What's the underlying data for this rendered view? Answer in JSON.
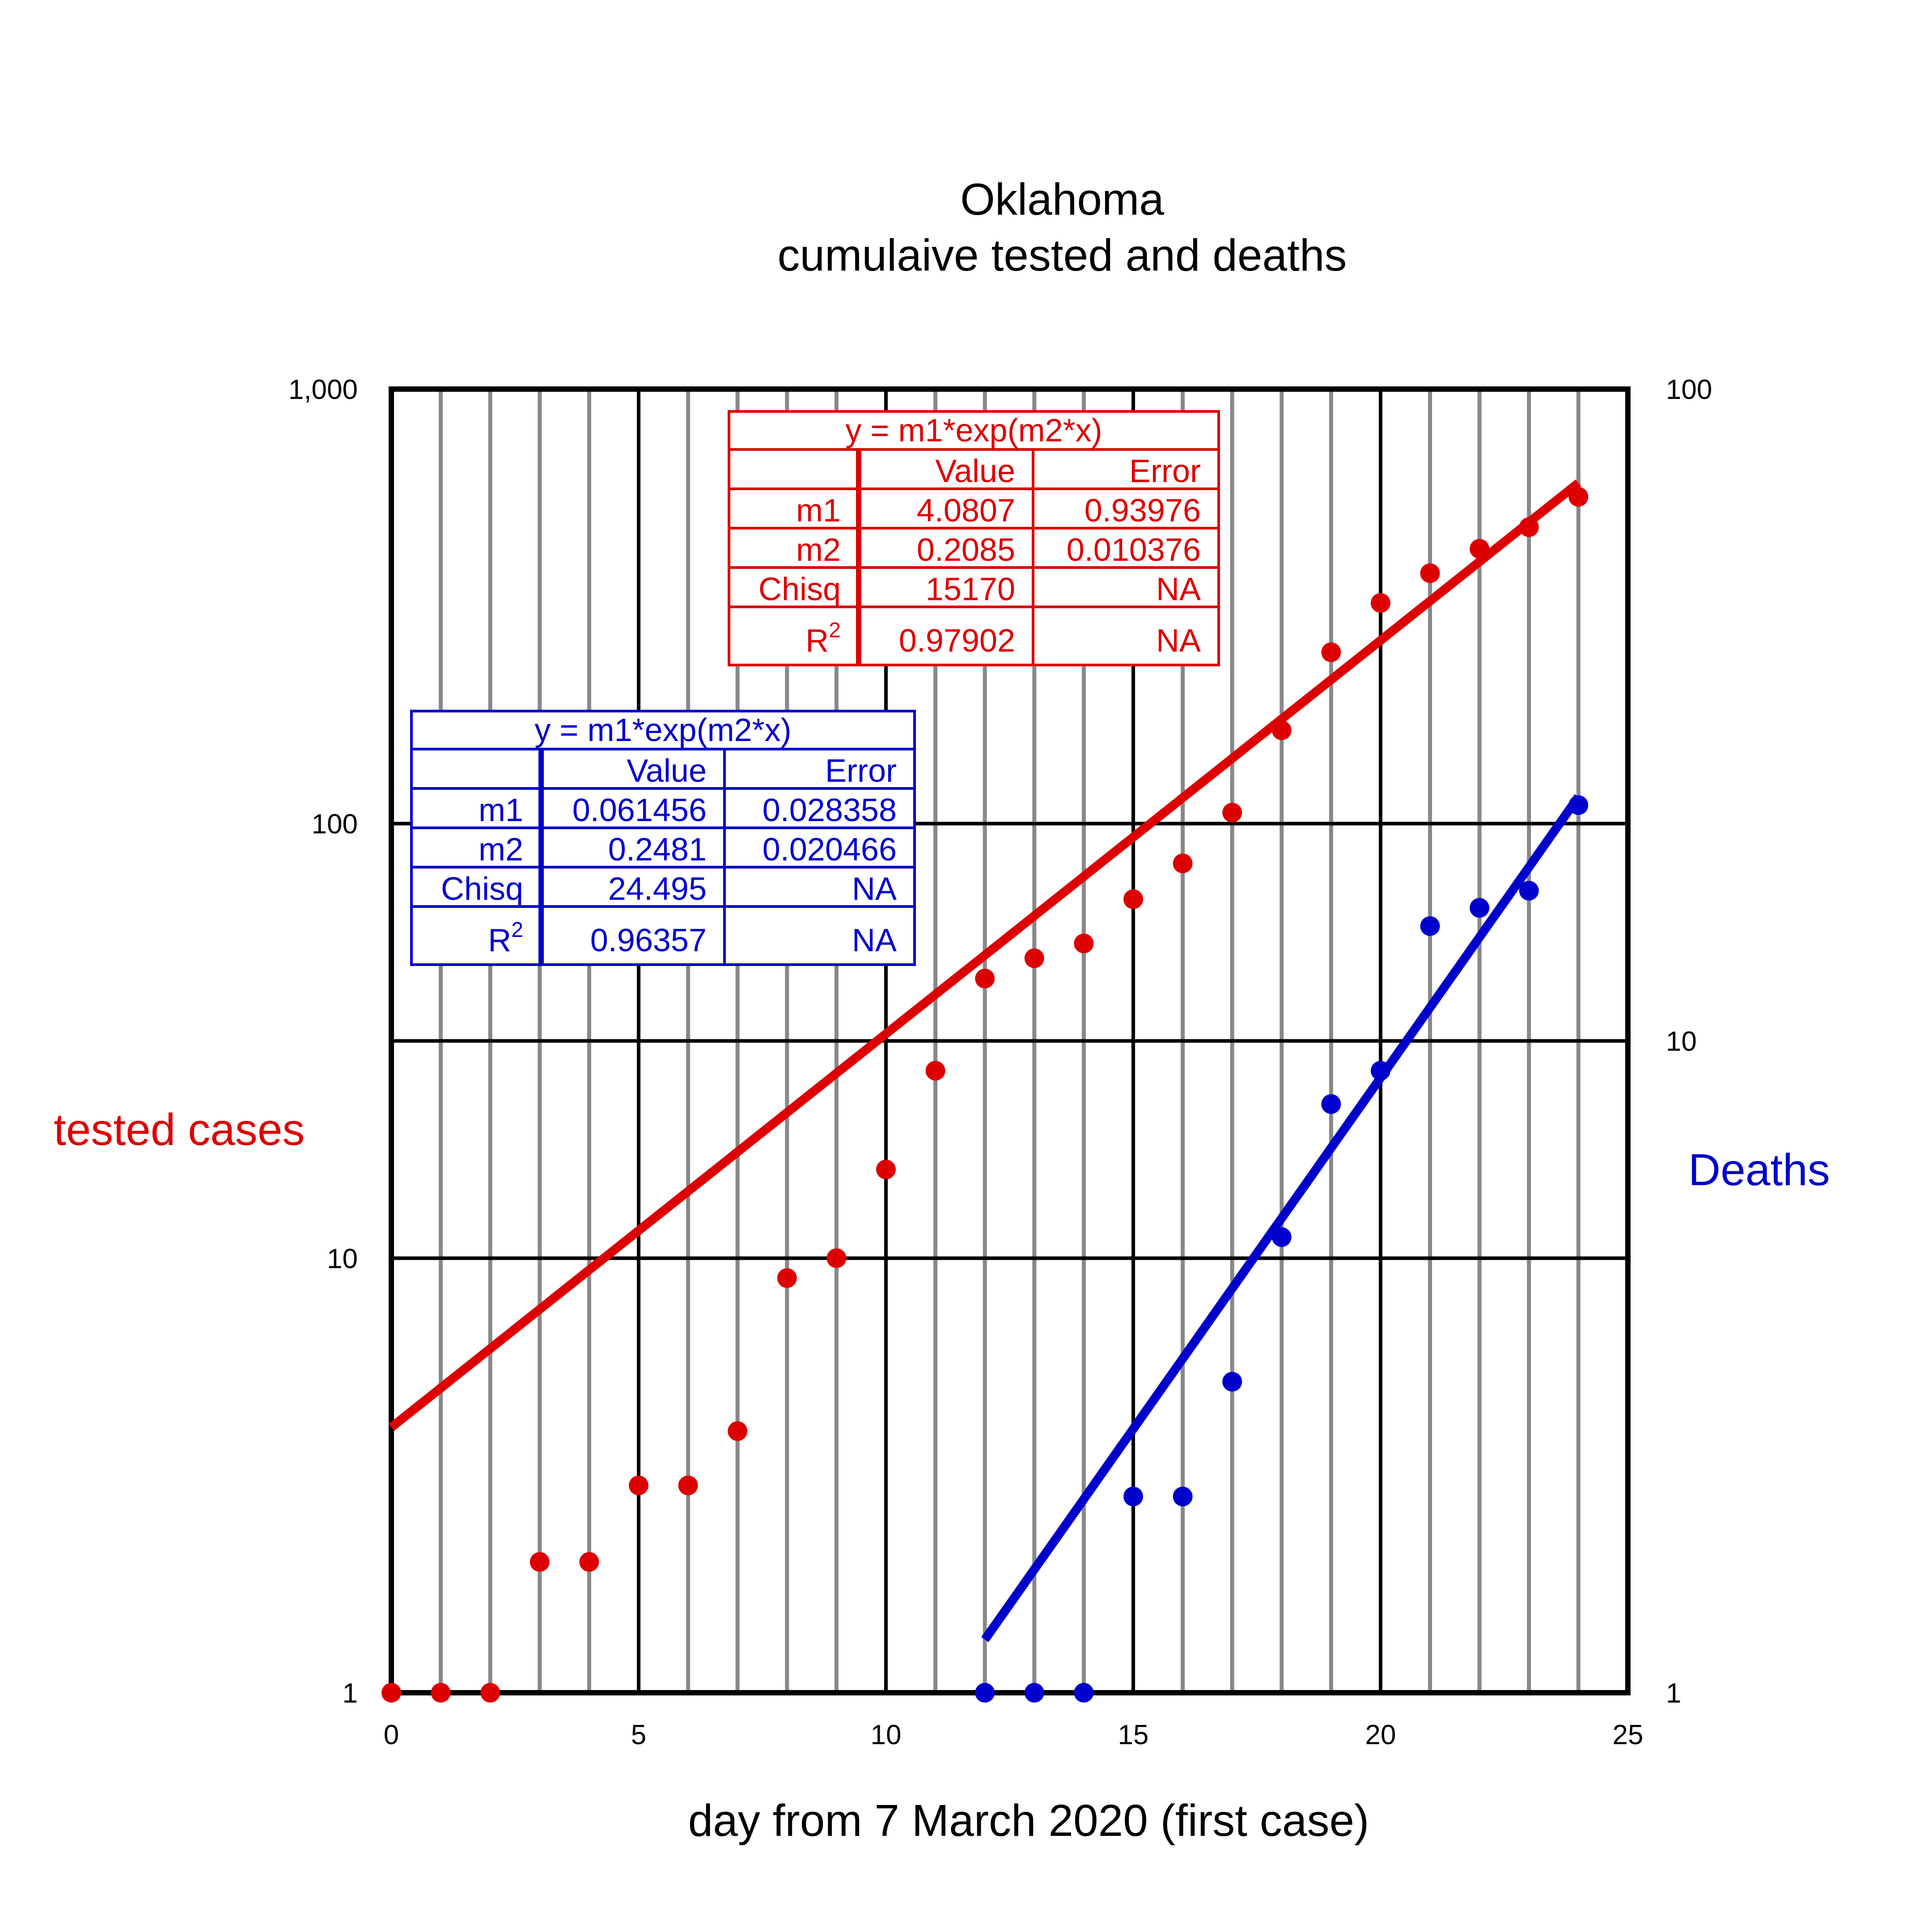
{
  "chart_data": {
    "type": "scatter",
    "title": "Oklahoma",
    "subtitle": "cumulaive tested and deaths",
    "xlabel": "day from 7 March 2020 (first case)",
    "ylabel_left": "tested cases",
    "ylabel_right": "Deaths",
    "xlim": [
      0,
      25
    ],
    "x_ticks": [
      0,
      5,
      10,
      15,
      20,
      25
    ],
    "x_tick_labels": [
      "0",
      "5",
      "10",
      "15",
      "20",
      "25"
    ],
    "x_minor_ticks": [
      1,
      2,
      3,
      4,
      6,
      7,
      8,
      9,
      11,
      12,
      13,
      14,
      16,
      17,
      18,
      19,
      21,
      22,
      23,
      24
    ],
    "y_left": {
      "scale": "log",
      "lim": [
        1,
        1000
      ],
      "ticks": [
        1,
        10,
        100,
        1000
      ],
      "tick_labels": [
        "1",
        "10",
        "100",
        "1,000"
      ]
    },
    "y_right": {
      "scale": "log",
      "lim": [
        1,
        100
      ],
      "ticks": [
        1,
        10,
        100
      ],
      "tick_labels": [
        "1",
        "10",
        "100"
      ]
    },
    "grid": true,
    "series": [
      {
        "name": "tested cases",
        "axis": "left",
        "color": "#dd0000",
        "x": [
          0,
          1,
          2,
          3,
          4,
          5,
          6,
          7,
          8,
          9,
          10,
          11,
          12,
          13,
          14,
          15,
          16,
          17,
          18,
          19,
          20,
          21,
          22,
          23,
          24
        ],
        "y": [
          1,
          1,
          1,
          2,
          2,
          3,
          3,
          4,
          9,
          10,
          16,
          27,
          44,
          49,
          53,
          67,
          81,
          106,
          164,
          248,
          322,
          377,
          429,
          481,
          565
        ],
        "fit": {
          "m1": 4.0807,
          "m2": 0.2085,
          "x_range": [
            0,
            24
          ]
        }
      },
      {
        "name": "Deaths",
        "axis": "right",
        "color": "#0000cc",
        "x": [
          12,
          13,
          14,
          15,
          16,
          17,
          18,
          19,
          20,
          21,
          22,
          23,
          24
        ],
        "y": [
          1,
          1,
          1,
          2,
          2,
          3,
          5,
          8,
          9,
          15,
          16,
          17,
          23
        ],
        "fit": {
          "m1": 0.061456,
          "m2": 0.2481,
          "x_range": [
            12,
            24
          ]
        }
      }
    ],
    "fit_tables": [
      {
        "series": "tested cases",
        "color": "#dd0000",
        "title": "y = m1*exp(m2*x)",
        "headers": [
          "",
          "Value",
          "Error"
        ],
        "rows": [
          [
            "m1",
            "4.0807",
            "0.93976"
          ],
          [
            "m2",
            "0.2085",
            "0.010376"
          ],
          [
            "Chisq",
            "15170",
            "NA"
          ],
          [
            "R",
            "0.97902",
            "NA"
          ]
        ],
        "r_superscript": "2"
      },
      {
        "series": "Deaths",
        "color": "#0000cc",
        "title": "y = m1*exp(m2*x)",
        "headers": [
          "",
          "Value",
          "Error"
        ],
        "rows": [
          [
            "m1",
            "0.061456",
            "0.028358"
          ],
          [
            "m2",
            "0.2481",
            "0.020466"
          ],
          [
            "Chisq",
            "24.495",
            "NA"
          ],
          [
            "R",
            "0.96357",
            "NA"
          ]
        ],
        "r_superscript": "2"
      }
    ]
  }
}
